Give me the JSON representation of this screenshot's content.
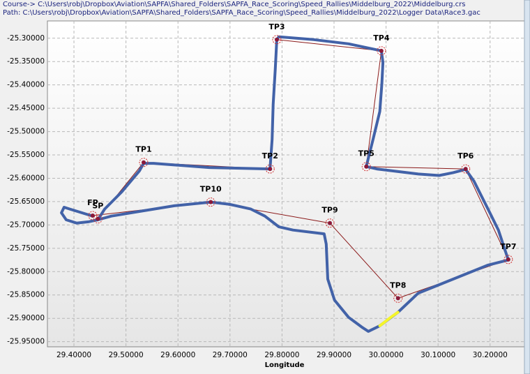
{
  "chart_data": {
    "type": "line",
    "course": "Course-> C:\\Users\\robj\\Dropbox\\Aviation\\SAPFA\\Shared_Folders\\SAPFA_Race_Scoring\\Speed_Rallies\\Middelburg_2022\\Middelburg.crs",
    "path": "Path: C:\\Users\\robj\\Dropbox\\Aviation\\SAPFA\\Shared_Folders\\SAPFA_Race_Scoring\\Speed_Rallies\\Middelburg_2022\\Logger Data\\Race3.gac",
    "xlabel": "Longitude",
    "xlim": [
      29.349,
      30.266
    ],
    "ylim": [
      -25.961,
      -25.263
    ],
    "grid": true,
    "xticks": [
      {
        "value": 29.4,
        "label": "29.40000"
      },
      {
        "value": 29.5,
        "label": "29.50000"
      },
      {
        "value": 29.6,
        "label": "29.60000"
      },
      {
        "value": 29.7,
        "label": "29.70000"
      },
      {
        "value": 29.8,
        "label": "29.80000"
      },
      {
        "value": 29.9,
        "label": "29.90000"
      },
      {
        "value": 30.0,
        "label": "30.00000"
      },
      {
        "value": 30.1,
        "label": "30.10000"
      },
      {
        "value": 30.2,
        "label": "30.20000"
      }
    ],
    "yticks": [
      {
        "value": -25.3,
        "label": "-25.30000"
      },
      {
        "value": -25.35,
        "label": "-25.35000"
      },
      {
        "value": -25.4,
        "label": "-25.40000"
      },
      {
        "value": -25.45,
        "label": "-25.45000"
      },
      {
        "value": -25.5,
        "label": "-25.50000"
      },
      {
        "value": -25.55,
        "label": "-25.55000"
      },
      {
        "value": -25.6,
        "label": "-25.60000"
      },
      {
        "value": -25.65,
        "label": "-25.65000"
      },
      {
        "value": -25.7,
        "label": "-25.70000"
      },
      {
        "value": -25.75,
        "label": "-25.75000"
      },
      {
        "value": -25.8,
        "label": "-25.80000"
      },
      {
        "value": -25.85,
        "label": "-25.85000"
      },
      {
        "value": -25.9,
        "label": "-25.90000"
      },
      {
        "value": -25.95,
        "label": "-25.95000"
      }
    ],
    "track": {
      "color": "#4262a8",
      "x": [
        29.436,
        29.392,
        29.381,
        29.376,
        29.385,
        29.405,
        29.429,
        29.446,
        29.459,
        29.492,
        29.526,
        29.534,
        29.553,
        29.66,
        29.777,
        29.781,
        29.783,
        29.787,
        29.79,
        29.794,
        29.861,
        29.928,
        29.991,
        29.994,
        29.992,
        29.988,
        29.975,
        29.962,
        29.982,
        30.062,
        30.102,
        30.129,
        30.153,
        30.169,
        30.196,
        30.216,
        30.235,
        30.196,
        30.129,
        30.062,
        30.023,
        29.988,
        29.966,
        29.955,
        29.928,
        29.901,
        29.888,
        29.885,
        29.881,
        29.821,
        29.794,
        29.767,
        29.74,
        29.7,
        29.663,
        29.593,
        29.526,
        29.472,
        29.446
      ],
      "y": [
        -25.681,
        -25.666,
        -25.662,
        -25.674,
        -25.689,
        -25.696,
        -25.693,
        -25.689,
        -25.666,
        -25.629,
        -25.584,
        -25.568,
        -25.568,
        -25.577,
        -25.58,
        -25.517,
        -25.442,
        -25.367,
        -25.303,
        -25.297,
        -25.303,
        -25.312,
        -25.327,
        -25.352,
        -25.397,
        -25.457,
        -25.517,
        -25.575,
        -25.58,
        -25.591,
        -25.594,
        -25.588,
        -25.581,
        -25.606,
        -25.666,
        -25.711,
        -25.775,
        -25.786,
        -25.816,
        -25.846,
        -25.887,
        -25.916,
        -25.928,
        -25.92,
        -25.898,
        -25.861,
        -25.816,
        -25.741,
        -25.719,
        -25.711,
        -25.704,
        -25.681,
        -25.666,
        -25.656,
        -25.651,
        -25.659,
        -25.671,
        -25.681,
        -25.689
      ]
    },
    "highlight": {
      "color": "#f5f52a",
      "x": [
        30.023,
        30.009,
        29.988
      ],
      "y": [
        -25.887,
        -25.898,
        -25.916
      ]
    },
    "turnpoints": {
      "color": "#8b1a1a",
      "labels": [
        "SP",
        "TP1",
        "TP2",
        "TP3",
        "TP4",
        "TP5",
        "TP6",
        "TP7",
        "TP8",
        "TP9",
        "TP10",
        "FP"
      ],
      "x": [
        29.446,
        29.534,
        29.777,
        29.79,
        29.991,
        29.962,
        30.153,
        30.235,
        30.023,
        29.892,
        29.663,
        29.436
      ],
      "y": [
        -25.687,
        -25.566,
        -25.58,
        -25.303,
        -25.327,
        -25.575,
        -25.58,
        -25.774,
        -25.857,
        -25.696,
        -25.651,
        -25.68
      ]
    }
  }
}
